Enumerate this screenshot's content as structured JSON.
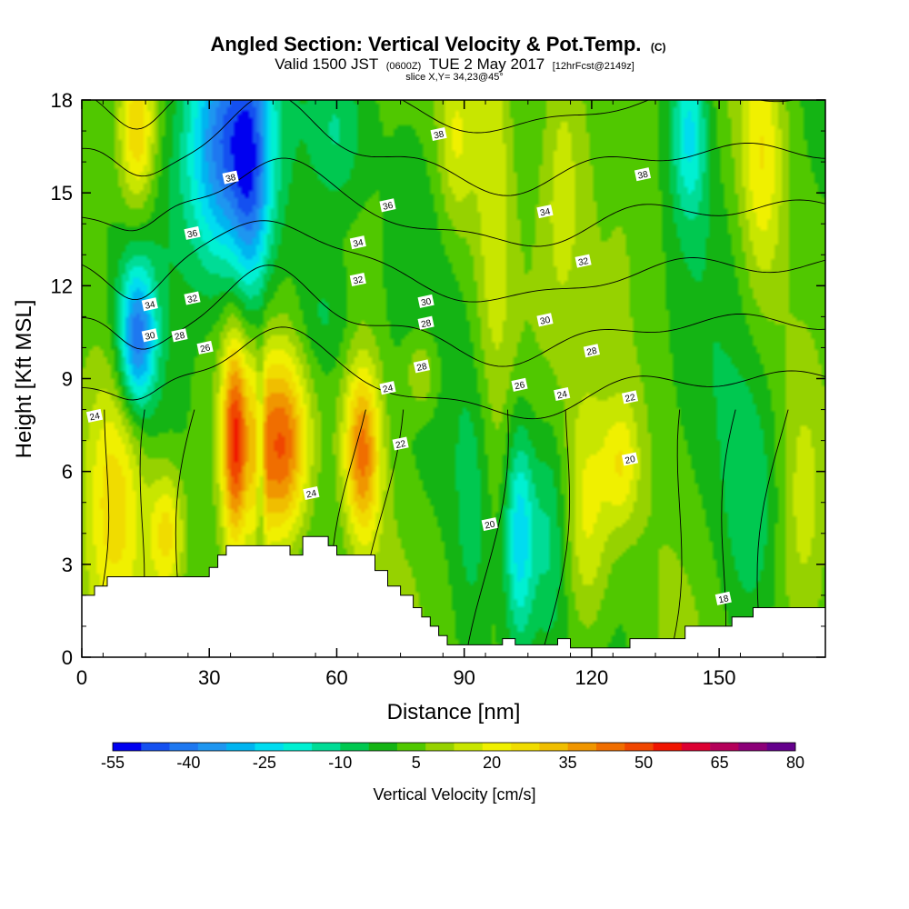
{
  "chart_data": {
    "type": "heatmap",
    "title": "Angled Section: Vertical Velocity & Pot.Temp.",
    "title_suffix": "(C)",
    "valid_prefix": "Valid 1500 JST",
    "valid_utc": "(0600Z)",
    "valid_date": "TUE 2 May 2017",
    "valid_fcst": "[12hrFcst@2149z]",
    "subtitle": "slice X,Y= 34,23@45°",
    "xlabel": "Distance [nm]",
    "ylabel": "Height [Kft MSL]",
    "xlim": [
      0,
      175
    ],
    "ylim": [
      0,
      18
    ],
    "x_ticks": [
      "0",
      "30",
      "60",
      "90",
      "120",
      "150"
    ],
    "x_tick_values": [
      0,
      30,
      60,
      90,
      120,
      150
    ],
    "y_ticks": [
      "0",
      "3",
      "6",
      "9",
      "12",
      "15",
      "18"
    ],
    "y_tick_values": [
      0,
      3,
      6,
      9,
      12,
      15,
      18
    ],
    "colorbar": {
      "title": "Vertical Velocity [cm/s]",
      "min": -55,
      "max": 80,
      "step": 5,
      "labels": [
        "-55",
        "-40",
        "-25",
        "-10",
        "5",
        "20",
        "35",
        "50",
        "65",
        "80"
      ],
      "colors": [
        "#0000f0",
        "#1450f0",
        "#1e78f0",
        "#1e96f0",
        "#00b4f0",
        "#00dcf0",
        "#00f0d2",
        "#00dc96",
        "#00c850",
        "#14b414",
        "#50c800",
        "#96d200",
        "#c8e600",
        "#f0f000",
        "#f0dc00",
        "#f0be00",
        "#f09600",
        "#f06e00",
        "#f04600",
        "#f01400",
        "#dc0032",
        "#b4005a",
        "#8c0078",
        "#64008c"
      ]
    },
    "terrain_top": [
      [
        0,
        2.0
      ],
      [
        3,
        2.0
      ],
      [
        3,
        2.3
      ],
      [
        6,
        2.3
      ],
      [
        6,
        2.6
      ],
      [
        30,
        2.6
      ],
      [
        30,
        2.9
      ],
      [
        32,
        2.9
      ],
      [
        32,
        3.3
      ],
      [
        34,
        3.3
      ],
      [
        34,
        3.6
      ],
      [
        49,
        3.6
      ],
      [
        49,
        3.3
      ],
      [
        52,
        3.3
      ],
      [
        52,
        3.9
      ],
      [
        58,
        3.9
      ],
      [
        58,
        3.6
      ],
      [
        60,
        3.6
      ],
      [
        60,
        3.3
      ],
      [
        69,
        3.3
      ],
      [
        69,
        2.8
      ],
      [
        72,
        2.8
      ],
      [
        72,
        2.3
      ],
      [
        75,
        2.3
      ],
      [
        75,
        2.0
      ],
      [
        78,
        2.0
      ],
      [
        78,
        1.6
      ],
      [
        80,
        1.6
      ],
      [
        80,
        1.3
      ],
      [
        82,
        1.3
      ],
      [
        82,
        1.0
      ],
      [
        84,
        1.0
      ],
      [
        84,
        0.7
      ],
      [
        86,
        0.7
      ],
      [
        86,
        0.4
      ],
      [
        99,
        0.4
      ],
      [
        99,
        0.6
      ],
      [
        102,
        0.6
      ],
      [
        102,
        0.4
      ],
      [
        112,
        0.4
      ],
      [
        112,
        0.6
      ],
      [
        115,
        0.6
      ],
      [
        115,
        0.3
      ],
      [
        129,
        0.3
      ],
      [
        129,
        0.6
      ],
      [
        142,
        0.6
      ],
      [
        142,
        1.0
      ],
      [
        153,
        1.0
      ],
      [
        153,
        1.3
      ],
      [
        158,
        1.3
      ],
      [
        158,
        1.6
      ],
      [
        175,
        1.6
      ]
    ],
    "updrafts": [
      {
        "x": 36,
        "y": 7.0,
        "w": 45,
        "sx": 2.2,
        "sy": 2.4
      },
      {
        "x": 47,
        "y": 6.8,
        "w": 44,
        "sx": 4.5,
        "sy": 2.2
      },
      {
        "x": 66,
        "y": 6.6,
        "w": 38,
        "sx": 3.0,
        "sy": 2.0
      },
      {
        "x": 13,
        "y": 17.0,
        "w": 28,
        "sx": 3.0,
        "sy": 1.8
      },
      {
        "x": 8,
        "y": 5.5,
        "w": 22,
        "sx": 5.0,
        "sy": 3.0
      },
      {
        "x": 20,
        "y": 4.0,
        "w": 24,
        "sx": 3.0,
        "sy": 1.5
      },
      {
        "x": 119,
        "y": 4.5,
        "w": 20,
        "sx": 4.0,
        "sy": 3.0
      },
      {
        "x": 127,
        "y": 6.2,
        "w": 18,
        "sx": 3.0,
        "sy": 1.5
      },
      {
        "x": 160,
        "y": 16.0,
        "w": 18,
        "sx": 3.5,
        "sy": 3.0
      },
      {
        "x": 113,
        "y": 16.0,
        "w": 14,
        "sx": 4.0,
        "sy": 4.0
      },
      {
        "x": 97,
        "y": 15.0,
        "w": 12,
        "sx": 3.0,
        "sy": 5.0
      },
      {
        "x": 88,
        "y": 16.5,
        "w": 14,
        "sx": 3.0,
        "sy": 2.0
      },
      {
        "x": 80,
        "y": 9.2,
        "w": 14,
        "sx": 3.0,
        "sy": 1.0
      },
      {
        "x": 42,
        "y": 6.5,
        "w": 16,
        "sx": 1.5,
        "sy": 3.0
      },
      {
        "x": 170,
        "y": 5.0,
        "w": 10,
        "sx": 4.0,
        "sy": 3.0
      }
    ],
    "downdrafts": [
      {
        "x": 34,
        "y": 16.5,
        "w": -48,
        "sx": 7.0,
        "sy": 3.0
      },
      {
        "x": 13,
        "y": 10.3,
        "w": -42,
        "sx": 3.0,
        "sy": 1.6
      },
      {
        "x": 42,
        "y": 6.5,
        "w": -28,
        "sx": 0.8,
        "sy": 2.5
      },
      {
        "x": 40,
        "y": 15.0,
        "w": -22,
        "sx": 3.0,
        "sy": 3.0
      },
      {
        "x": 103,
        "y": 4.0,
        "w": -30,
        "sx": 2.5,
        "sy": 2.5
      },
      {
        "x": 110,
        "y": 4.0,
        "w": -14,
        "sx": 3.0,
        "sy": 2.5
      },
      {
        "x": 143,
        "y": 17.0,
        "w": -24,
        "sx": 3.0,
        "sy": 2.0
      },
      {
        "x": 60,
        "y": 17.0,
        "w": -16,
        "sx": 5.0,
        "sy": 2.0
      },
      {
        "x": 158,
        "y": 5.0,
        "w": -12,
        "sx": 5.0,
        "sy": 3.0
      },
      {
        "x": 92,
        "y": 5.0,
        "w": -10,
        "sx": 3.0,
        "sy": 3.0
      },
      {
        "x": 57,
        "y": 11.0,
        "w": -10,
        "sx": 5.0,
        "sy": 1.5
      }
    ],
    "theta_levels": [
      18,
      20,
      22,
      24,
      26,
      28,
      30,
      32,
      34,
      36,
      38
    ],
    "contour_labels": [
      {
        "text": "38",
        "x": 84,
        "y": 16.9
      },
      {
        "text": "38",
        "x": 35,
        "y": 15.5
      },
      {
        "text": "38",
        "x": 132,
        "y": 15.6
      },
      {
        "text": "36",
        "x": 72,
        "y": 14.6
      },
      {
        "text": "36",
        "x": 26,
        "y": 13.7
      },
      {
        "text": "34",
        "x": 109,
        "y": 14.4
      },
      {
        "text": "34",
        "x": 65,
        "y": 13.4
      },
      {
        "text": "34",
        "x": 16,
        "y": 11.4
      },
      {
        "text": "32",
        "x": 65,
        "y": 12.2
      },
      {
        "text": "32",
        "x": 26,
        "y": 11.6
      },
      {
        "text": "32",
        "x": 118,
        "y": 12.8
      },
      {
        "text": "30",
        "x": 81,
        "y": 11.5
      },
      {
        "text": "30",
        "x": 109,
        "y": 10.9
      },
      {
        "text": "30",
        "x": 16,
        "y": 10.4
      },
      {
        "text": "28",
        "x": 81,
        "y": 10.8
      },
      {
        "text": "28",
        "x": 23,
        "y": 10.4
      },
      {
        "text": "28",
        "x": 120,
        "y": 9.9
      },
      {
        "text": "28",
        "x": 80,
        "y": 9.4
      },
      {
        "text": "26",
        "x": 29,
        "y": 10.0
      },
      {
        "text": "26",
        "x": 103,
        "y": 8.8
      },
      {
        "text": "24",
        "x": 3,
        "y": 7.8
      },
      {
        "text": "24",
        "x": 72,
        "y": 8.7
      },
      {
        "text": "24",
        "x": 113,
        "y": 8.5
      },
      {
        "text": "24",
        "x": 54,
        "y": 5.3
      },
      {
        "text": "22",
        "x": 75,
        "y": 6.9
      },
      {
        "text": "22",
        "x": 129,
        "y": 8.4
      },
      {
        "text": "20",
        "x": 96,
        "y": 4.3
      },
      {
        "text": "20",
        "x": 129,
        "y": 6.4
      },
      {
        "text": "18",
        "x": 151,
        "y": 1.9
      }
    ]
  }
}
